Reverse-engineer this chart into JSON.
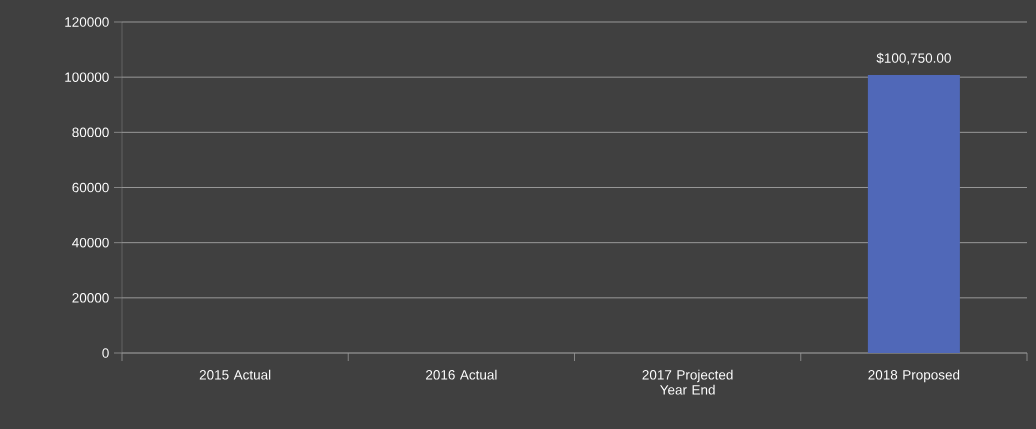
{
  "chart_data": {
    "type": "bar",
    "categories": [
      "2015 Actual",
      "2016 Actual",
      "2017 Projected Year End",
      "2018 Proposed"
    ],
    "values": [
      null,
      null,
      null,
      100750
    ],
    "value_labels": [
      null,
      null,
      null,
      "$100,750.00"
    ],
    "color": "#5068b8",
    "ylim": [
      0,
      120000
    ],
    "yticks": [
      0,
      20000,
      40000,
      60000,
      80000,
      100000,
      120000
    ],
    "grid": "y"
  }
}
